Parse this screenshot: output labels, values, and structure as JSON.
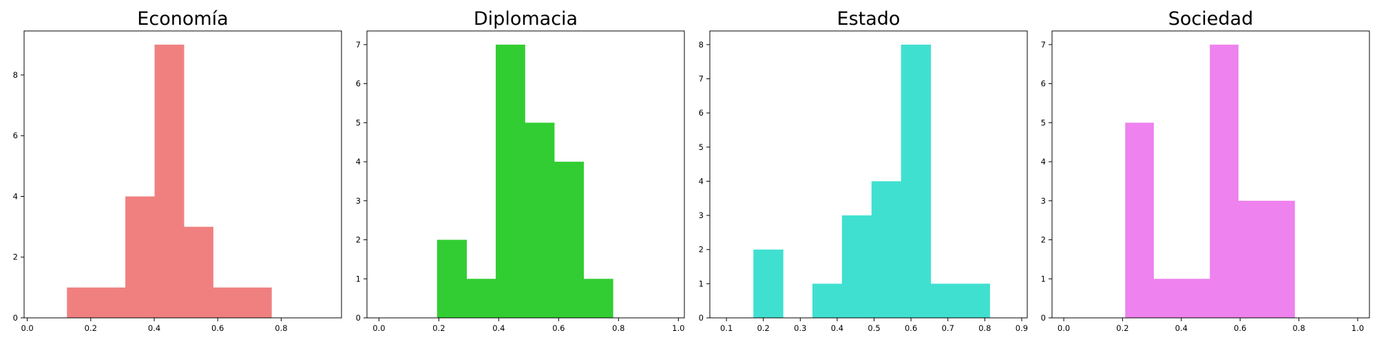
{
  "chart_data": [
    {
      "type": "bar",
      "title": "Economía",
      "color": "#f08080",
      "xlim": [
        -0.01,
        0.99
      ],
      "ylim": [
        0,
        9.45
      ],
      "xticks": [
        0.0,
        0.2,
        0.4,
        0.6,
        0.8
      ],
      "xtick_labels": [
        "0.0",
        "0.2",
        "0.4",
        "0.6",
        "0.8"
      ],
      "yticks": [
        0,
        2,
        4,
        6,
        8
      ],
      "ytick_labels": [
        "0",
        "2",
        "4",
        "6",
        "8"
      ],
      "bins": [
        {
          "x0": 0.125,
          "x1": 0.217,
          "value": 1
        },
        {
          "x0": 0.217,
          "x1": 0.309,
          "value": 1
        },
        {
          "x0": 0.309,
          "x1": 0.401,
          "value": 4
        },
        {
          "x0": 0.401,
          "x1": 0.493,
          "value": 9
        },
        {
          "x0": 0.493,
          "x1": 0.585,
          "value": 3
        },
        {
          "x0": 0.585,
          "x1": 0.677,
          "value": 1
        },
        {
          "x0": 0.677,
          "x1": 0.769,
          "value": 1
        }
      ]
    },
    {
      "type": "bar",
      "title": "Diplomacia",
      "color": "#32cd32",
      "xlim": [
        -0.04,
        1.02
      ],
      "ylim": [
        0,
        7.35
      ],
      "xticks": [
        0.0,
        0.2,
        0.4,
        0.6,
        0.8,
        1.0
      ],
      "xtick_labels": [
        "0.0",
        "0.2",
        "0.4",
        "0.6",
        "0.8",
        "1.0"
      ],
      "yticks": [
        0,
        1,
        2,
        3,
        4,
        5,
        6,
        7
      ],
      "ytick_labels": [
        "0",
        "1",
        "2",
        "3",
        "4",
        "5",
        "6",
        "7"
      ],
      "bins": [
        {
          "x0": 0.194,
          "x1": 0.292,
          "value": 2
        },
        {
          "x0": 0.292,
          "x1": 0.39,
          "value": 1
        },
        {
          "x0": 0.39,
          "x1": 0.487,
          "value": 7
        },
        {
          "x0": 0.487,
          "x1": 0.585,
          "value": 5
        },
        {
          "x0": 0.585,
          "x1": 0.683,
          "value": 4
        },
        {
          "x0": 0.683,
          "x1": 0.781,
          "value": 1
        }
      ]
    },
    {
      "type": "bar",
      "title": "Estado",
      "color": "#40e0d0",
      "xlim": [
        0.055,
        0.915
      ],
      "ylim": [
        0,
        8.4
      ],
      "xticks": [
        0.1,
        0.2,
        0.3,
        0.4,
        0.5,
        0.6,
        0.7,
        0.8,
        0.9
      ],
      "xtick_labels": [
        "0.1",
        "0.2",
        "0.3",
        "0.4",
        "0.5",
        "0.6",
        "0.7",
        "0.8",
        "0.9"
      ],
      "yticks": [
        0,
        1,
        2,
        3,
        4,
        5,
        6,
        7,
        8
      ],
      "ytick_labels": [
        "0",
        "1",
        "2",
        "3",
        "4",
        "5",
        "6",
        "7",
        "8"
      ],
      "bins": [
        {
          "x0": 0.173,
          "x1": 0.253,
          "value": 2
        },
        {
          "x0": 0.253,
          "x1": 0.333,
          "value": 0
        },
        {
          "x0": 0.333,
          "x1": 0.413,
          "value": 1
        },
        {
          "x0": 0.413,
          "x1": 0.493,
          "value": 3
        },
        {
          "x0": 0.493,
          "x1": 0.573,
          "value": 4
        },
        {
          "x0": 0.573,
          "x1": 0.653,
          "value": 8
        },
        {
          "x0": 0.653,
          "x1": 0.733,
          "value": 1
        },
        {
          "x0": 0.733,
          "x1": 0.813,
          "value": 1
        }
      ]
    },
    {
      "type": "bar",
      "title": "Sociedad",
      "color": "#ee82ee",
      "xlim": [
        -0.04,
        1.04
      ],
      "ylim": [
        0,
        7.35
      ],
      "xticks": [
        0.0,
        0.2,
        0.4,
        0.6,
        0.8,
        1.0
      ],
      "xtick_labels": [
        "0.0",
        "0.2",
        "0.4",
        "0.6",
        "0.8",
        "1.0"
      ],
      "yticks": [
        0,
        1,
        2,
        3,
        4,
        5,
        6,
        7
      ],
      "ytick_labels": [
        "0",
        "1",
        "2",
        "3",
        "4",
        "5",
        "6",
        "7"
      ],
      "bins": [
        {
          "x0": 0.209,
          "x1": 0.305,
          "value": 5
        },
        {
          "x0": 0.305,
          "x1": 0.401,
          "value": 1
        },
        {
          "x0": 0.401,
          "x1": 0.497,
          "value": 1
        },
        {
          "x0": 0.497,
          "x1": 0.593,
          "value": 7
        },
        {
          "x0": 0.593,
          "x1": 0.689,
          "value": 3
        },
        {
          "x0": 0.689,
          "x1": 0.785,
          "value": 3
        }
      ]
    }
  ]
}
